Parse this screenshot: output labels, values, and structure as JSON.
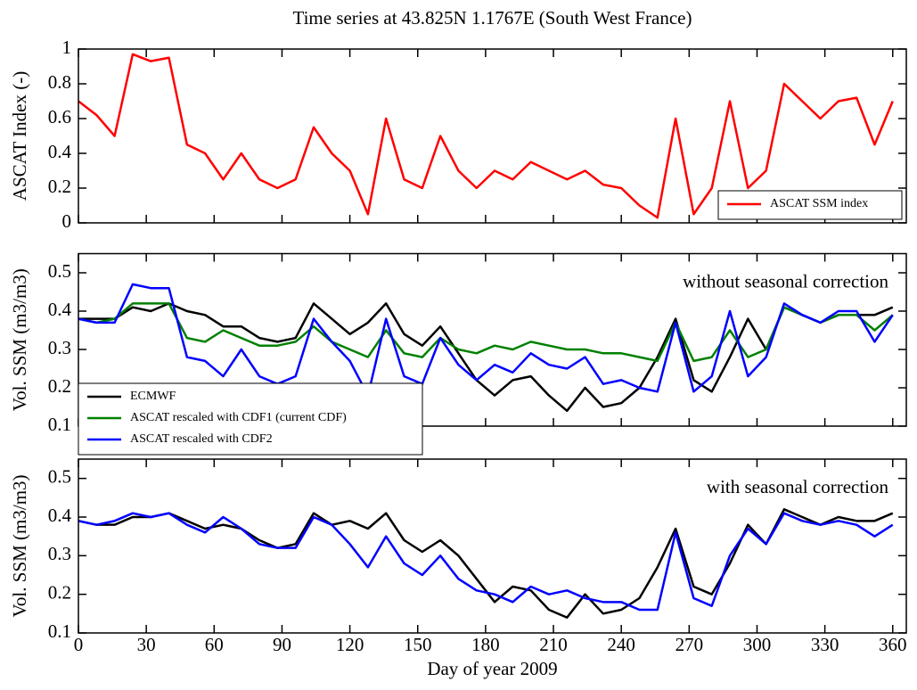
{
  "chart_data": [
    {
      "type": "line",
      "title": "Time series at 43.825N 1.1767E (South West France)",
      "ylabel": "ASCAT Index (-)",
      "x": [
        0,
        8,
        16,
        24,
        32,
        40,
        48,
        56,
        64,
        72,
        80,
        88,
        96,
        104,
        112,
        120,
        128,
        136,
        144,
        152,
        160,
        168,
        176,
        184,
        192,
        200,
        208,
        216,
        224,
        232,
        240,
        248,
        256,
        264,
        272,
        280,
        288,
        296,
        304,
        312,
        320,
        328,
        336,
        344,
        352,
        360
      ],
      "xlim": [
        0,
        366
      ],
      "ylim": [
        0,
        1
      ],
      "yticks": [
        0,
        0.2,
        0.4,
        0.6,
        0.8,
        1
      ],
      "legend": "lower right",
      "series": [
        {
          "name": "ASCAT SSM index",
          "color": "#ff0000",
          "values": [
            0.7,
            0.62,
            0.5,
            0.97,
            0.93,
            0.95,
            0.45,
            0.4,
            0.25,
            0.4,
            0.25,
            0.2,
            0.25,
            0.55,
            0.4,
            0.3,
            0.05,
            0.6,
            0.25,
            0.2,
            0.5,
            0.3,
            0.2,
            0.3,
            0.25,
            0.35,
            0.3,
            0.25,
            0.3,
            0.22,
            0.2,
            0.1,
            0.03,
            0.6,
            0.05,
            0.2,
            0.7,
            0.2,
            0.3,
            0.8,
            0.7,
            0.6,
            0.7,
            0.72,
            0.45,
            0.7
          ]
        }
      ]
    },
    {
      "type": "line",
      "ylabel": "Vol. SSM (m3/m3)",
      "annotation": "without seasonal correction",
      "x": [
        0,
        8,
        16,
        24,
        32,
        40,
        48,
        56,
        64,
        72,
        80,
        88,
        96,
        104,
        112,
        120,
        128,
        136,
        144,
        152,
        160,
        168,
        176,
        184,
        192,
        200,
        208,
        216,
        224,
        232,
        240,
        248,
        256,
        264,
        272,
        280,
        288,
        296,
        304,
        312,
        320,
        328,
        336,
        344,
        352,
        360
      ],
      "xlim": [
        0,
        366
      ],
      "ylim": [
        0.1,
        0.55
      ],
      "yticks": [
        0.1,
        0.2,
        0.3,
        0.4,
        0.5
      ],
      "legend": "lower left",
      "series": [
        {
          "name": "ECMWF",
          "color": "#000000",
          "values": [
            0.38,
            0.38,
            0.38,
            0.41,
            0.4,
            0.42,
            0.4,
            0.39,
            0.36,
            0.36,
            0.33,
            0.32,
            0.33,
            0.42,
            0.38,
            0.34,
            0.37,
            0.42,
            0.34,
            0.31,
            0.36,
            0.29,
            0.22,
            0.18,
            0.22,
            0.23,
            0.18,
            0.14,
            0.2,
            0.15,
            0.16,
            0.2,
            0.28,
            0.38,
            0.22,
            0.19,
            0.28,
            0.38,
            0.3,
            0.41,
            0.39,
            0.37,
            0.39,
            0.39,
            0.39,
            0.41
          ]
        },
        {
          "name": "ASCAT rescaled with CDF1 (current CDF)",
          "color": "#008000",
          "values": [
            0.38,
            0.37,
            0.38,
            0.42,
            0.42,
            0.42,
            0.33,
            0.32,
            0.35,
            0.33,
            0.31,
            0.31,
            0.32,
            0.36,
            0.32,
            0.3,
            0.28,
            0.35,
            0.29,
            0.28,
            0.33,
            0.3,
            0.29,
            0.31,
            0.3,
            0.32,
            0.31,
            0.3,
            0.3,
            0.29,
            0.29,
            0.28,
            0.27,
            0.37,
            0.27,
            0.28,
            0.35,
            0.28,
            0.3,
            0.41,
            0.39,
            0.37,
            0.39,
            0.39,
            0.35,
            0.39
          ]
        },
        {
          "name": "ASCAT rescaled with CDF2",
          "color": "#0000ff",
          "values": [
            0.38,
            0.37,
            0.37,
            0.47,
            0.46,
            0.46,
            0.28,
            0.27,
            0.23,
            0.3,
            0.23,
            0.21,
            0.23,
            0.38,
            0.32,
            0.27,
            0.18,
            0.38,
            0.23,
            0.21,
            0.33,
            0.26,
            0.22,
            0.26,
            0.24,
            0.29,
            0.26,
            0.25,
            0.28,
            0.21,
            0.22,
            0.2,
            0.19,
            0.37,
            0.19,
            0.23,
            0.4,
            0.23,
            0.28,
            0.42,
            0.39,
            0.37,
            0.4,
            0.4,
            0.32,
            0.39
          ]
        }
      ]
    },
    {
      "type": "line",
      "ylabel": "Vol. SSM (m3/m3)",
      "annotation": "with seasonal correction",
      "xlabel": "Day of year 2009",
      "x": [
        0,
        8,
        16,
        24,
        32,
        40,
        48,
        56,
        64,
        72,
        80,
        88,
        96,
        104,
        112,
        120,
        128,
        136,
        144,
        152,
        160,
        168,
        176,
        184,
        192,
        200,
        208,
        216,
        224,
        232,
        240,
        248,
        256,
        264,
        272,
        280,
        288,
        296,
        304,
        312,
        320,
        328,
        336,
        344,
        352,
        360
      ],
      "xlim": [
        0,
        366
      ],
      "xticks": [
        0,
        30,
        60,
        90,
        120,
        150,
        180,
        210,
        240,
        270,
        300,
        330,
        360
      ],
      "ylim": [
        0.1,
        0.55
      ],
      "yticks": [
        0.1,
        0.2,
        0.3,
        0.4,
        0.5
      ],
      "series": [
        {
          "color": "#000000",
          "values": [
            0.39,
            0.38,
            0.38,
            0.4,
            0.4,
            0.41,
            0.39,
            0.37,
            0.38,
            0.37,
            0.34,
            0.32,
            0.33,
            0.41,
            0.38,
            0.39,
            0.37,
            0.41,
            0.34,
            0.31,
            0.34,
            0.3,
            0.24,
            0.18,
            0.22,
            0.21,
            0.16,
            0.14,
            0.2,
            0.15,
            0.16,
            0.19,
            0.27,
            0.37,
            0.22,
            0.2,
            0.28,
            0.38,
            0.33,
            0.42,
            0.4,
            0.38,
            0.4,
            0.39,
            0.39,
            0.41
          ]
        },
        {
          "color": "#0000ff",
          "values": [
            0.39,
            0.38,
            0.39,
            0.41,
            0.4,
            0.41,
            0.38,
            0.36,
            0.4,
            0.37,
            0.33,
            0.32,
            0.32,
            0.4,
            0.38,
            0.33,
            0.27,
            0.35,
            0.28,
            0.25,
            0.3,
            0.24,
            0.21,
            0.2,
            0.18,
            0.22,
            0.2,
            0.21,
            0.19,
            0.18,
            0.18,
            0.16,
            0.16,
            0.36,
            0.19,
            0.17,
            0.3,
            0.37,
            0.33,
            0.41,
            0.39,
            0.38,
            0.39,
            0.38,
            0.35,
            0.38
          ]
        }
      ]
    }
  ]
}
